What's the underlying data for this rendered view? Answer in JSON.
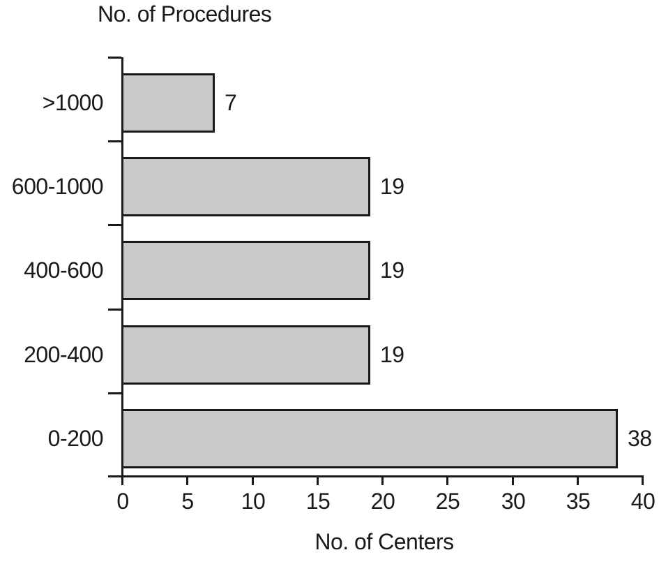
{
  "chart_data": {
    "type": "bar",
    "orientation": "horizontal",
    "title": "No. of Procedures",
    "xlabel": "No. of Centers",
    "ylabel": "No. of Procedures",
    "categories": [
      ">1000",
      "600-1000",
      "400-600",
      "200-400",
      "0-200"
    ],
    "values": [
      7,
      19,
      19,
      19,
      38
    ],
    "value_labels": [
      "7",
      "19",
      "19",
      "19",
      "38"
    ],
    "x_ticks": [
      0,
      5,
      10,
      15,
      20,
      25,
      30,
      35,
      40
    ],
    "xlim": [
      0,
      40
    ],
    "grid": false,
    "legend": null,
    "colors": {
      "bar_fill": "#c9c9c9",
      "bar_border": "#1a1a1a",
      "axis": "#1a1a1a",
      "text": "#1a1a1a",
      "background": "#ffffff"
    }
  }
}
